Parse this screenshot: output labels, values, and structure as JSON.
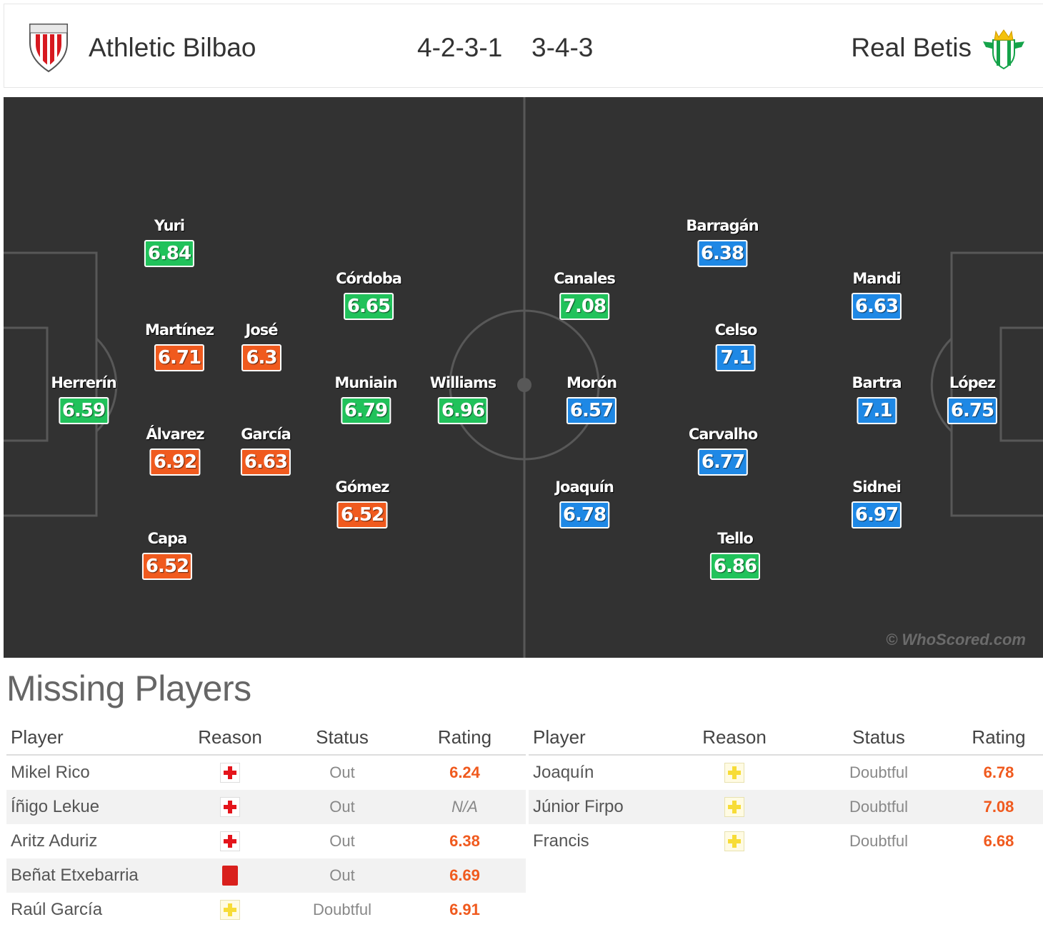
{
  "header": {
    "home_team": "Athletic Bilbao",
    "home_formation": "4-2-3-1",
    "away_formation": "3-4-3",
    "away_team": "Real Betis"
  },
  "colors": {
    "pitch": "#323232",
    "rating_green": "#21c25b",
    "rating_orange": "#f05a1e",
    "rating_blue": "#1e88e5",
    "rating_text_missing": "#f05a1e"
  },
  "icons": {
    "home_crest": "athletic-bilbao-crest-icon",
    "away_crest": "real-betis-crest-icon",
    "injury": "injury-cross-icon",
    "doubtful": "doubtful-cross-icon",
    "red_card": "red-card-icon"
  },
  "home_players": [
    {
      "name": "Yuri",
      "rating": "6.84",
      "color": "#21c25b"
    },
    {
      "name": "Martínez",
      "rating": "6.71",
      "color": "#f05a1e"
    },
    {
      "name": "José",
      "rating": "6.3",
      "color": "#f05a1e"
    },
    {
      "name": "Herrerín",
      "rating": "6.59",
      "color": "#21c25b"
    },
    {
      "name": "Álvarez",
      "rating": "6.92",
      "color": "#f05a1e"
    },
    {
      "name": "García",
      "rating": "6.63",
      "color": "#f05a1e"
    },
    {
      "name": "Capa",
      "rating": "6.52",
      "color": "#f05a1e"
    },
    {
      "name": "Córdoba",
      "rating": "6.65",
      "color": "#21c25b"
    },
    {
      "name": "Muniain",
      "rating": "6.79",
      "color": "#21c25b"
    },
    {
      "name": "Williams",
      "rating": "6.96",
      "color": "#21c25b"
    },
    {
      "name": "Gómez",
      "rating": "6.52",
      "color": "#f05a1e"
    }
  ],
  "away_players": [
    {
      "name": "Canales",
      "rating": "7.08",
      "color": "#21c25b"
    },
    {
      "name": "Morón",
      "rating": "6.57",
      "color": "#1e88e5"
    },
    {
      "name": "Joaquín",
      "rating": "6.78",
      "color": "#1e88e5"
    },
    {
      "name": "Barragán",
      "rating": "6.38",
      "color": "#1e88e5"
    },
    {
      "name": "Celso",
      "rating": "7.1",
      "color": "#1e88e5"
    },
    {
      "name": "Carvalho",
      "rating": "6.77",
      "color": "#1e88e5"
    },
    {
      "name": "Tello",
      "rating": "6.86",
      "color": "#21c25b"
    },
    {
      "name": "Mandi",
      "rating": "6.63",
      "color": "#1e88e5"
    },
    {
      "name": "Bartra",
      "rating": "7.1",
      "color": "#1e88e5"
    },
    {
      "name": "Sidnei",
      "rating": "6.97",
      "color": "#1e88e5"
    },
    {
      "name": "López",
      "rating": "6.75",
      "color": "#1e88e5"
    }
  ],
  "watermark": "© WhoScored.com",
  "missing": {
    "title": "Missing Players",
    "columns": [
      "Player",
      "Reason",
      "Status",
      "Rating"
    ],
    "home": [
      {
        "player": "Mikel Rico",
        "reason": "injury",
        "status": "Out",
        "rating": "6.24"
      },
      {
        "player": "Íñigo Lekue",
        "reason": "injury",
        "status": "Out",
        "rating": "N/A"
      },
      {
        "player": "Aritz Aduriz",
        "reason": "injury",
        "status": "Out",
        "rating": "6.38"
      },
      {
        "player": "Beñat Etxebarria",
        "reason": "red-card",
        "status": "Out",
        "rating": "6.69"
      },
      {
        "player": "Raúl García",
        "reason": "doubtful",
        "status": "Doubtful",
        "rating": "6.91"
      }
    ],
    "away": [
      {
        "player": "Joaquín",
        "reason": "doubtful",
        "status": "Doubtful",
        "rating": "6.78"
      },
      {
        "player": "Júnior Firpo",
        "reason": "doubtful",
        "status": "Doubtful",
        "rating": "7.08"
      },
      {
        "player": "Francis",
        "reason": "doubtful",
        "status": "Doubtful",
        "rating": "6.68"
      }
    ]
  }
}
